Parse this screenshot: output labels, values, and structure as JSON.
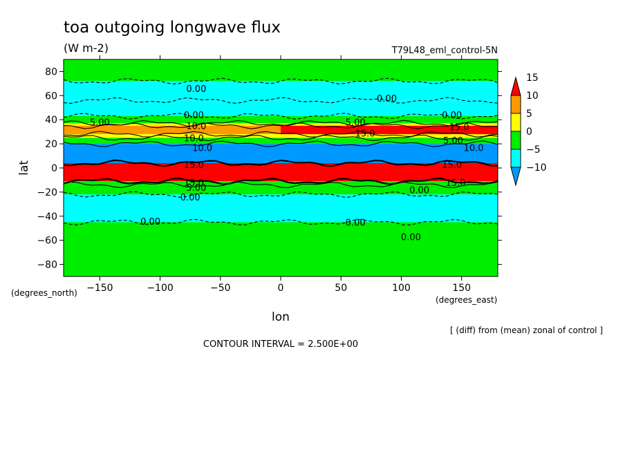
{
  "chart_data": {
    "type": "heatmap",
    "title": "toa outgoing longwave flux",
    "units": "(W m-2)",
    "dataset": "T79L48_eml_control-5N",
    "xlabel": "lon",
    "ylabel": "lat",
    "x_units": "(degrees_east)",
    "y_units": "(degrees_north)",
    "xlim": [
      -180,
      180
    ],
    "ylim": [
      -90,
      90
    ],
    "x_ticks": [
      -150,
      -100,
      -50,
      0,
      50,
      100,
      150
    ],
    "x_tick_labels": [
      "−150",
      "−100",
      "−50",
      "0",
      "50",
      "100",
      "150"
    ],
    "y_ticks": [
      80,
      60,
      40,
      20,
      0,
      -20,
      -40,
      -60,
      -80
    ],
    "y_tick_labels": [
      "80",
      "60",
      "40",
      "20",
      "0",
      "−20",
      "−40",
      "−60",
      "−80"
    ],
    "operation_note": "[ (diff) from (mean) zonal of control ]",
    "contour_interval_text": "CONTOUR INTERVAL = 2.500E+00",
    "contour_interval": 2.5,
    "colorbar": {
      "levels": [
        15,
        10,
        5,
        0,
        -5,
        -10
      ],
      "level_labels": [
        "15",
        "10",
        "5",
        "0",
        "−5",
        "−10"
      ],
      "colors": [
        "#ff0000",
        "#ff9900",
        "#ffff00",
        "#00ee00",
        "#00ffff",
        "#0099ff"
      ],
      "extend": "both"
    },
    "zonal_bands": [
      {
        "lat_from": 90,
        "lat_to": 72,
        "value": 2.5,
        "color": "#00ee00"
      },
      {
        "lat_from": 72,
        "lat_to": 56,
        "value": -2.5,
        "color": "#00ffff"
      },
      {
        "lat_from": 56,
        "lat_to": 43,
        "value": -2.5,
        "color": "#00ffff"
      },
      {
        "lat_from": 43,
        "lat_to": 37,
        "value": 2.5,
        "color": "#00ee00"
      },
      {
        "lat_from": 37,
        "lat_to": 35,
        "value": 7.5,
        "color": "#ffff00"
      },
      {
        "lat_from": 35,
        "lat_to": 28,
        "value": 10,
        "color": "#ff9900"
      },
      {
        "lat_from": 28,
        "lat_to": 25,
        "value": 7.5,
        "color": "#ffff00"
      },
      {
        "lat_from": 25,
        "lat_to": 20,
        "value": 2.5,
        "color": "#00ee00"
      },
      {
        "lat_from": 20,
        "lat_to": 4,
        "value": -10,
        "color": "#0099ff"
      },
      {
        "lat_from": 4,
        "lat_to": -11,
        "value": 15,
        "color": "#ff0000"
      },
      {
        "lat_from": -11,
        "lat_to": -14,
        "value": 2.5,
        "color": "#00ee00"
      },
      {
        "lat_from": -14,
        "lat_to": -22,
        "value": 2.5,
        "color": "#00ee00"
      },
      {
        "lat_from": -22,
        "lat_to": -45,
        "value": -2.5,
        "color": "#00ffff"
      },
      {
        "lat_from": -45,
        "lat_to": -90,
        "value": 2.5,
        "color": "#00ee00"
      }
    ],
    "regional_patches": [
      {
        "lon_from": 0,
        "lon_to": 180,
        "lat_from": 35,
        "lat_to": 28,
        "value": 15,
        "color": "#ff0000"
      },
      {
        "lon_from": -170,
        "lon_to": -110,
        "lat_from": 2,
        "lat_to": -4,
        "value": 15,
        "color": "#ff0000"
      }
    ],
    "contour_labels": [
      {
        "text": "0.00",
        "lon": -70,
        "lat": 66
      },
      {
        "text": "0.00",
        "lon": 88,
        "lat": 58
      },
      {
        "text": "5.00",
        "lon": -150,
        "lat": 38
      },
      {
        "text": "0.00",
        "lon": -72,
        "lat": 44
      },
      {
        "text": "10.0",
        "lon": -70,
        "lat": 35
      },
      {
        "text": "10.0",
        "lon": -72,
        "lat": 25
      },
      {
        "text": "10.0",
        "lon": -65,
        "lat": 17
      },
      {
        "text": "5.00",
        "lon": 62,
        "lat": 38
      },
      {
        "text": "15.0",
        "lon": 70,
        "lat": 29
      },
      {
        "text": "0.00",
        "lon": 142,
        "lat": 44
      },
      {
        "text": "15.0",
        "lon": 148,
        "lat": 34
      },
      {
        "text": "5.00",
        "lon": 143,
        "lat": 23
      },
      {
        "text": "10.0",
        "lon": 160,
        "lat": 17
      },
      {
        "text": "15.0",
        "lon": -72,
        "lat": 3
      },
      {
        "text": "15.0",
        "lon": 142,
        "lat": 3
      },
      {
        "text": "15.0",
        "lon": -72,
        "lat": -12
      },
      {
        "text": "5.00",
        "lon": -70,
        "lat": -16
      },
      {
        "text": "15.0",
        "lon": 145,
        "lat": -12
      },
      {
        "text": "0.00",
        "lon": 115,
        "lat": -18
      },
      {
        "text": "0.00",
        "lon": -75,
        "lat": -24
      },
      {
        "text": "0.00",
        "lon": -108,
        "lat": -44
      },
      {
        "text": "0.00",
        "lon": 62,
        "lat": -45
      },
      {
        "text": "0.00",
        "lon": 108,
        "lat": -57
      }
    ],
    "grid": false,
    "legend_placement": "right"
  }
}
